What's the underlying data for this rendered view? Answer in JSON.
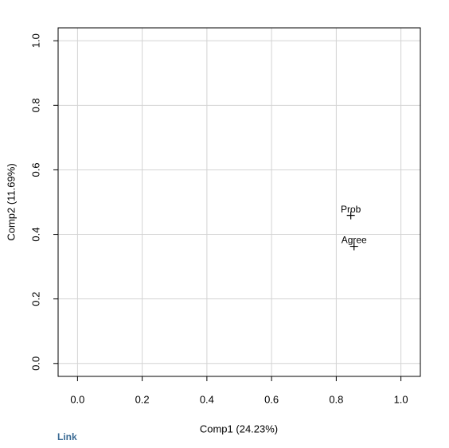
{
  "chart_data": {
    "type": "scatter",
    "xlabel": "Comp1 (24.23%)",
    "ylabel": "Comp2 (11.69%)",
    "x": [
      0.845,
      0.855
    ],
    "values": [
      0.459,
      0.363
    ],
    "point_labels": [
      "Prob",
      "Agree"
    ],
    "color": "#000000",
    "xlim": [
      -0.06,
      1.06
    ],
    "ylim": [
      -0.04,
      1.04
    ],
    "xticks": [
      {
        "value": 0,
        "label": "0.0"
      },
      0.2,
      0.4,
      0.6,
      0.8,
      {
        "value": 1,
        "label": "1.0"
      }
    ],
    "yticks": [
      {
        "value": 0,
        "label": "0.0"
      },
      0.2,
      0.4,
      0.6,
      0.8,
      {
        "value": 1,
        "label": "1.0"
      }
    ],
    "grid": true
  },
  "link_text": "Link"
}
